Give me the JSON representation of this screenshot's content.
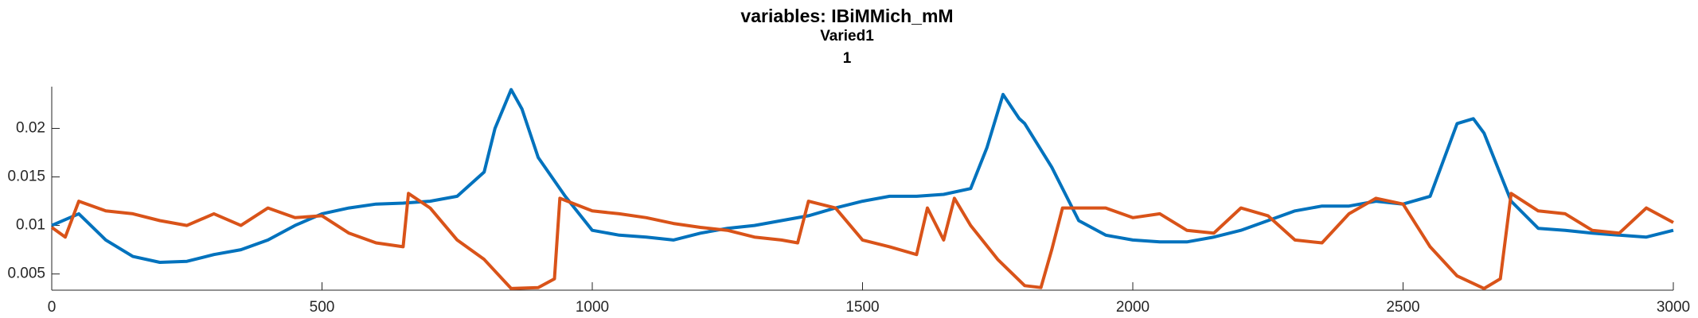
{
  "chart_data": {
    "type": "line",
    "title": "variables: IBiMMich_mM",
    "subtitle": "Varied1",
    "subtitle2": "1",
    "xlim": [
      0,
      3000
    ],
    "xticks": [
      0,
      500,
      1000,
      1500,
      2000,
      2500,
      3000
    ],
    "ylim": [
      0.00333,
      0.0243
    ],
    "yticks": [
      0.005,
      0.01,
      0.015,
      0.02
    ],
    "series": [
      {
        "color": "#0072bd",
        "x": [
          0,
          50,
          100,
          150,
          200,
          250,
          300,
          350,
          400,
          450,
          500,
          550,
          600,
          650,
          700,
          750,
          800,
          820,
          850,
          870,
          900,
          950,
          1000,
          1050,
          1100,
          1150,
          1200,
          1250,
          1300,
          1350,
          1400,
          1450,
          1500,
          1550,
          1600,
          1650,
          1700,
          1730,
          1760,
          1790,
          1800,
          1850,
          1900,
          1950,
          2000,
          2050,
          2100,
          2150,
          2200,
          2250,
          2300,
          2350,
          2400,
          2450,
          2500,
          2550,
          2600,
          2630,
          2650,
          2700,
          2750,
          2800,
          2850,
          2900,
          2950,
          3000
        ],
        "values": [
          0.01,
          0.0112,
          0.0085,
          0.0068,
          0.0062,
          0.0063,
          0.007,
          0.0075,
          0.0085,
          0.01,
          0.0112,
          0.0118,
          0.0122,
          0.0123,
          0.0125,
          0.013,
          0.0155,
          0.02,
          0.024,
          0.022,
          0.017,
          0.013,
          0.0095,
          0.009,
          0.0088,
          0.0085,
          0.0092,
          0.0097,
          0.01,
          0.0105,
          0.011,
          0.0118,
          0.0125,
          0.013,
          0.013,
          0.0132,
          0.0138,
          0.018,
          0.0235,
          0.021,
          0.0205,
          0.016,
          0.0105,
          0.009,
          0.0085,
          0.0083,
          0.0083,
          0.0088,
          0.0095,
          0.0105,
          0.0115,
          0.012,
          0.012,
          0.0125,
          0.0122,
          0.013,
          0.0205,
          0.021,
          0.0195,
          0.0125,
          0.0097,
          0.0095,
          0.0092,
          0.009,
          0.0088,
          0.0095
        ]
      },
      {
        "color": "#d95319",
        "x": [
          0,
          25,
          50,
          100,
          150,
          200,
          250,
          300,
          350,
          400,
          450,
          500,
          550,
          600,
          650,
          660,
          700,
          750,
          800,
          850,
          900,
          930,
          940,
          1000,
          1050,
          1100,
          1150,
          1200,
          1250,
          1300,
          1350,
          1380,
          1400,
          1450,
          1500,
          1550,
          1600,
          1620,
          1650,
          1670,
          1700,
          1750,
          1800,
          1830,
          1850,
          1870,
          1950,
          2000,
          2050,
          2100,
          2150,
          2200,
          2250,
          2300,
          2350,
          2400,
          2450,
          2500,
          2550,
          2600,
          2650,
          2680,
          2700,
          2750,
          2800,
          2850,
          2900,
          2950,
          3000
        ],
        "values": [
          0.0098,
          0.0088,
          0.0125,
          0.0115,
          0.0112,
          0.0105,
          0.01,
          0.0112,
          0.01,
          0.0118,
          0.0108,
          0.011,
          0.0092,
          0.0082,
          0.0078,
          0.0133,
          0.0118,
          0.0085,
          0.0065,
          0.0035,
          0.0036,
          0.0045,
          0.0128,
          0.0115,
          0.0112,
          0.0108,
          0.0102,
          0.0098,
          0.0095,
          0.0088,
          0.0085,
          0.0082,
          0.0125,
          0.0118,
          0.0085,
          0.0078,
          0.007,
          0.0118,
          0.0085,
          0.0128,
          0.01,
          0.0065,
          0.0038,
          0.0036,
          0.0075,
          0.0118,
          0.0118,
          0.0108,
          0.0112,
          0.0095,
          0.0092,
          0.0118,
          0.011,
          0.0085,
          0.0082,
          0.0112,
          0.0128,
          0.0122,
          0.0078,
          0.0048,
          0.0035,
          0.0045,
          0.0133,
          0.0115,
          0.0112,
          0.0095,
          0.0092,
          0.0118,
          0.0103
        ]
      }
    ]
  }
}
